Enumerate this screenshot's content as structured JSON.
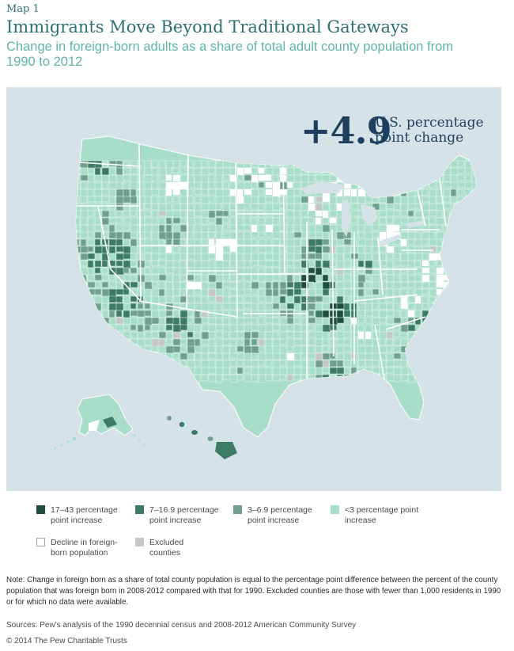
{
  "header": {
    "eyebrow": "Map 1",
    "title": "Immigrants Move Beyond Traditional Gateways",
    "subtitle": "Change in foreign-born adults as a share of total adult county population from 1990 to 2012"
  },
  "callout": {
    "value": "+4.9",
    "text": "U.S. percentage point change"
  },
  "legend": {
    "items": [
      {
        "label": "17–43 percentage point increase",
        "color": "#1e4d3e"
      },
      {
        "label": "7–16.9 percentage point increase",
        "color": "#3e7b65"
      },
      {
        "label": "3–6.9 percentage point increase",
        "color": "#6fa08f"
      },
      {
        "label": "<3 percentage point increase",
        "color": "#a8ddc9"
      },
      {
        "label": "Decline in foreign-born population",
        "color": "#ffffff"
      },
      {
        "label": "Excluded counties",
        "color": "#c3c7c9"
      }
    ]
  },
  "colors": {
    "map_background": "#d5e2e8",
    "land_base": "#a8ddc9",
    "county_border": "#ffffff"
  },
  "note": "Note: Change in foreign born as a share of total county population is equal to the percentage point difference between the percent of the county population that was foreign born in 2008-2012 compared with that for 1990. Excluded counties are those with fewer than 1,000 residents in 1990 or for which no data were available.",
  "sources": "Sources: Pew's analysis of the 1990 decennial census and 2008-2012 American Community Survey",
  "copyright": "© 2014 The Pew Charitable Trusts"
}
